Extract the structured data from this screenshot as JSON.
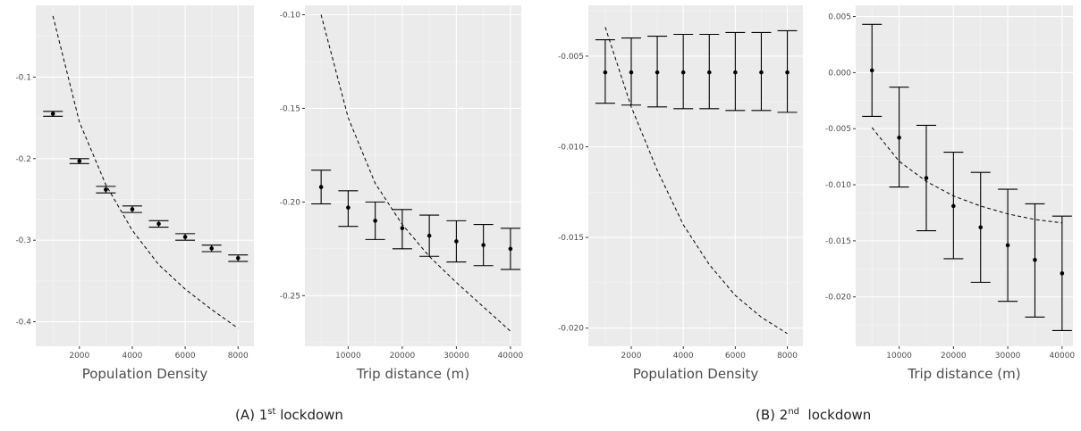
{
  "captions": [
    {
      "label": "(A) 1",
      "sup": "st",
      "rest": " lockdown"
    },
    {
      "label": "(B) 2",
      "sup": "nd",
      "rest": "  lockdown"
    }
  ],
  "colors": {
    "panel_bg": "#ebebeb",
    "grid_major": "#ffffff",
    "marks": "#000000",
    "text": "#4d4d4d"
  },
  "chart_data": [
    {
      "type": "errorbar+line",
      "group": "(A) 1st lockdown",
      "xlabel": "Population Density",
      "ylabel": "",
      "xlim": [
        350,
        8600
      ],
      "ylim": [
        -0.43,
        -0.012
      ],
      "xticks": [
        2000,
        4000,
        6000,
        8000
      ],
      "yticks": [
        -0.1,
        -0.2,
        -0.3,
        -0.4
      ],
      "ytick_labels": [
        "-0.1",
        "-0.2",
        "-0.3",
        "-0.4"
      ],
      "points": {
        "x": [
          1000,
          2000,
          3000,
          4000,
          5000,
          6000,
          7000,
          8000
        ],
        "y": [
          -0.145,
          -0.203,
          -0.238,
          -0.262,
          -0.28,
          -0.296,
          -0.31,
          -0.322
        ],
        "lower": [
          -0.148,
          -0.206,
          -0.242,
          -0.266,
          -0.284,
          -0.3,
          -0.314,
          -0.326
        ],
        "upper": [
          -0.142,
          -0.2,
          -0.234,
          -0.258,
          -0.276,
          -0.292,
          -0.306,
          -0.318
        ]
      },
      "dashed_line": {
        "x": [
          1000,
          2000,
          3000,
          4000,
          5000,
          6000,
          7000,
          8000
        ],
        "y": [
          -0.025,
          -0.155,
          -0.232,
          -0.288,
          -0.33,
          -0.36,
          -0.385,
          -0.408
        ]
      }
    },
    {
      "type": "errorbar+line",
      "group": "(A) 1st lockdown",
      "xlabel": "Trip distance (m)",
      "ylabel": "",
      "xlim": [
        2000,
        42000
      ],
      "ylim": [
        -0.277,
        -0.095
      ],
      "xticks": [
        10000,
        20000,
        30000,
        40000
      ],
      "yticks": [
        -0.1,
        -0.15,
        -0.2,
        -0.25
      ],
      "ytick_labels": [
        "-0.10",
        "-0.15",
        "-0.20",
        "-0.25"
      ],
      "points": {
        "x": [
          5000,
          10000,
          15000,
          20000,
          25000,
          30000,
          35000,
          40000
        ],
        "y": [
          -0.192,
          -0.203,
          -0.21,
          -0.214,
          -0.218,
          -0.221,
          -0.223,
          -0.225
        ],
        "lower": [
          -0.201,
          -0.213,
          -0.22,
          -0.225,
          -0.229,
          -0.232,
          -0.234,
          -0.236
        ],
        "upper": [
          -0.183,
          -0.194,
          -0.2,
          -0.204,
          -0.207,
          -0.21,
          -0.212,
          -0.214
        ]
      },
      "dashed_line": {
        "x": [
          5000,
          10000,
          15000,
          20000,
          25000,
          30000,
          35000,
          40000
        ],
        "y": [
          -0.1,
          -0.155,
          -0.19,
          -0.212,
          -0.229,
          -0.243,
          -0.256,
          -0.269
        ]
      }
    },
    {
      "type": "errorbar+line",
      "group": "(B) 2nd lockdown",
      "xlabel": "Population Density",
      "ylabel": "",
      "xlim": [
        350,
        8600
      ],
      "ylim": [
        -0.021,
        -0.0022
      ],
      "xticks": [
        2000,
        4000,
        6000,
        8000
      ],
      "yticks": [
        -0.005,
        -0.01,
        -0.015,
        -0.02
      ],
      "ytick_labels": [
        "-0.005",
        "-0.010",
        "-0.015",
        "-0.020"
      ],
      "points": {
        "x": [
          1000,
          2000,
          3000,
          4000,
          5000,
          6000,
          7000,
          8000
        ],
        "y": [
          -0.0059,
          -0.0059,
          -0.0059,
          -0.0059,
          -0.0059,
          -0.0059,
          -0.0059,
          -0.0059
        ],
        "lower": [
          -0.0076,
          -0.0077,
          -0.0078,
          -0.0079,
          -0.0079,
          -0.008,
          -0.008,
          -0.0081
        ],
        "upper": [
          -0.0041,
          -0.004,
          -0.0039,
          -0.0038,
          -0.0038,
          -0.0037,
          -0.0037,
          -0.0036
        ]
      },
      "dashed_line": {
        "x": [
          1000,
          2000,
          3000,
          4000,
          5000,
          6000,
          7000,
          8000
        ],
        "y": [
          -0.0034,
          -0.0078,
          -0.0113,
          -0.0143,
          -0.0165,
          -0.0182,
          -0.0194,
          -0.0203
        ]
      }
    },
    {
      "type": "errorbar+line",
      "group": "(B) 2nd lockdown",
      "xlabel": "Trip distance (m)",
      "ylabel": "",
      "xlim": [
        2000,
        42000
      ],
      "ylim": [
        -0.0244,
        0.006
      ],
      "xticks": [
        10000,
        20000,
        30000,
        40000
      ],
      "yticks": [
        0.005,
        0.0,
        -0.005,
        -0.01,
        -0.015,
        -0.02
      ],
      "ytick_labels": [
        "0.005",
        "0.000",
        "-0.005",
        "-0.010",
        "-0.015",
        "-0.020"
      ],
      "points": {
        "x": [
          5000,
          10000,
          15000,
          20000,
          25000,
          30000,
          35000,
          40000
        ],
        "y": [
          0.0002,
          -0.0058,
          -0.0094,
          -0.0119,
          -0.0138,
          -0.0154,
          -0.0167,
          -0.0179
        ],
        "lower": [
          -0.0039,
          -0.0102,
          -0.0141,
          -0.0166,
          -0.0187,
          -0.0204,
          -0.0218,
          -0.023
        ],
        "upper": [
          0.0043,
          -0.0013,
          -0.0047,
          -0.0071,
          -0.0089,
          -0.0104,
          -0.0117,
          -0.0128
        ]
      },
      "dashed_line": {
        "x": [
          5000,
          10000,
          15000,
          20000,
          25000,
          30000,
          35000,
          40000
        ],
        "y": [
          -0.0049,
          -0.0079,
          -0.0097,
          -0.011,
          -0.0119,
          -0.0126,
          -0.0131,
          -0.0134
        ]
      }
    }
  ]
}
